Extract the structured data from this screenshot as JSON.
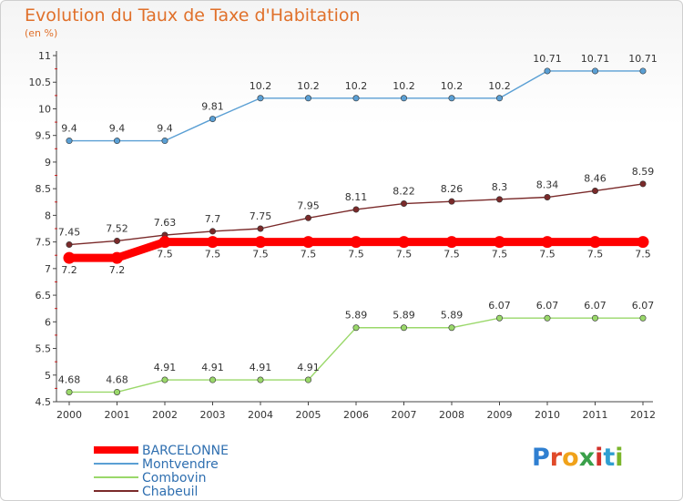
{
  "title": "Evolution du Taux de Taxe d'Habitation",
  "subtitle": "(en %)",
  "logo": {
    "text": "Proxiti",
    "colors": [
      "#2f7fd1",
      "#e04a2a",
      "#f0a21a",
      "#3aa04a",
      "#d2302a",
      "#2f9fd1",
      "#7ab52a"
    ]
  },
  "chart_data": {
    "type": "line",
    "x": [
      "2000",
      "2001",
      "2002",
      "2003",
      "2004",
      "2005",
      "2006",
      "2007",
      "2008",
      "2009",
      "2010",
      "2011",
      "2012"
    ],
    "ylim": [
      4.5,
      11
    ],
    "yticks": [
      4.5,
      5,
      5.5,
      6,
      6.5,
      7,
      7.5,
      8,
      8.5,
      9,
      9.5,
      10,
      10.5,
      11
    ],
    "ytick_labels": [
      "4.5",
      "5",
      "5.5",
      "6",
      "6.5",
      "7",
      "7.5",
      "8",
      "8.5",
      "9",
      "9.5",
      "10",
      "10.5",
      "11"
    ],
    "grid": false,
    "legend_position": "bottom-left",
    "series": [
      {
        "name": "BARCELONNE",
        "color": "#ff0000",
        "values": [
          7.2,
          7.2,
          7.5,
          7.5,
          7.5,
          7.5,
          7.5,
          7.5,
          7.5,
          7.5,
          7.5,
          7.5,
          7.5
        ],
        "labels": [
          "7.2",
          "7.2",
          "7.5",
          "7.5",
          "7.5",
          "7.5",
          "7.5",
          "7.5",
          "7.5",
          "7.5",
          "7.5",
          "7.5",
          "7.5"
        ]
      },
      {
        "name": "Montvendre",
        "color": "#5a9fd4",
        "values": [
          9.4,
          9.4,
          9.4,
          9.81,
          10.2,
          10.2,
          10.2,
          10.2,
          10.2,
          10.2,
          10.71,
          10.71,
          10.71
        ],
        "labels": [
          "9.4",
          "9.4",
          "9.4",
          "9.81",
          "10.2",
          "10.2",
          "10.2",
          "10.2",
          "10.2",
          "10.2",
          "10.71",
          "10.71",
          "10.71"
        ]
      },
      {
        "name": "Combovin",
        "color": "#9ad86a",
        "values": [
          4.68,
          4.68,
          4.91,
          4.91,
          4.91,
          4.91,
          5.89,
          5.89,
          5.89,
          6.07,
          6.07,
          6.07,
          6.07
        ],
        "labels": [
          "4.68",
          "4.68",
          "4.91",
          "4.91",
          "4.91",
          "4.91",
          "5.89",
          "5.89",
          "5.89",
          "6.07",
          "6.07",
          "6.07",
          "6.07"
        ]
      },
      {
        "name": "Chabeuil",
        "color": "#7a2a2a",
        "values": [
          7.45,
          7.52,
          7.63,
          7.7,
          7.75,
          7.95,
          8.11,
          8.22,
          8.26,
          8.3,
          8.34,
          8.46,
          8.59
        ],
        "labels": [
          "7.45",
          "7.52",
          "7.63",
          "7.7",
          "7.75",
          "7.95",
          "8.11",
          "8.22",
          "8.26",
          "8.3",
          "8.34",
          "8.46",
          "8.59"
        ]
      }
    ]
  }
}
